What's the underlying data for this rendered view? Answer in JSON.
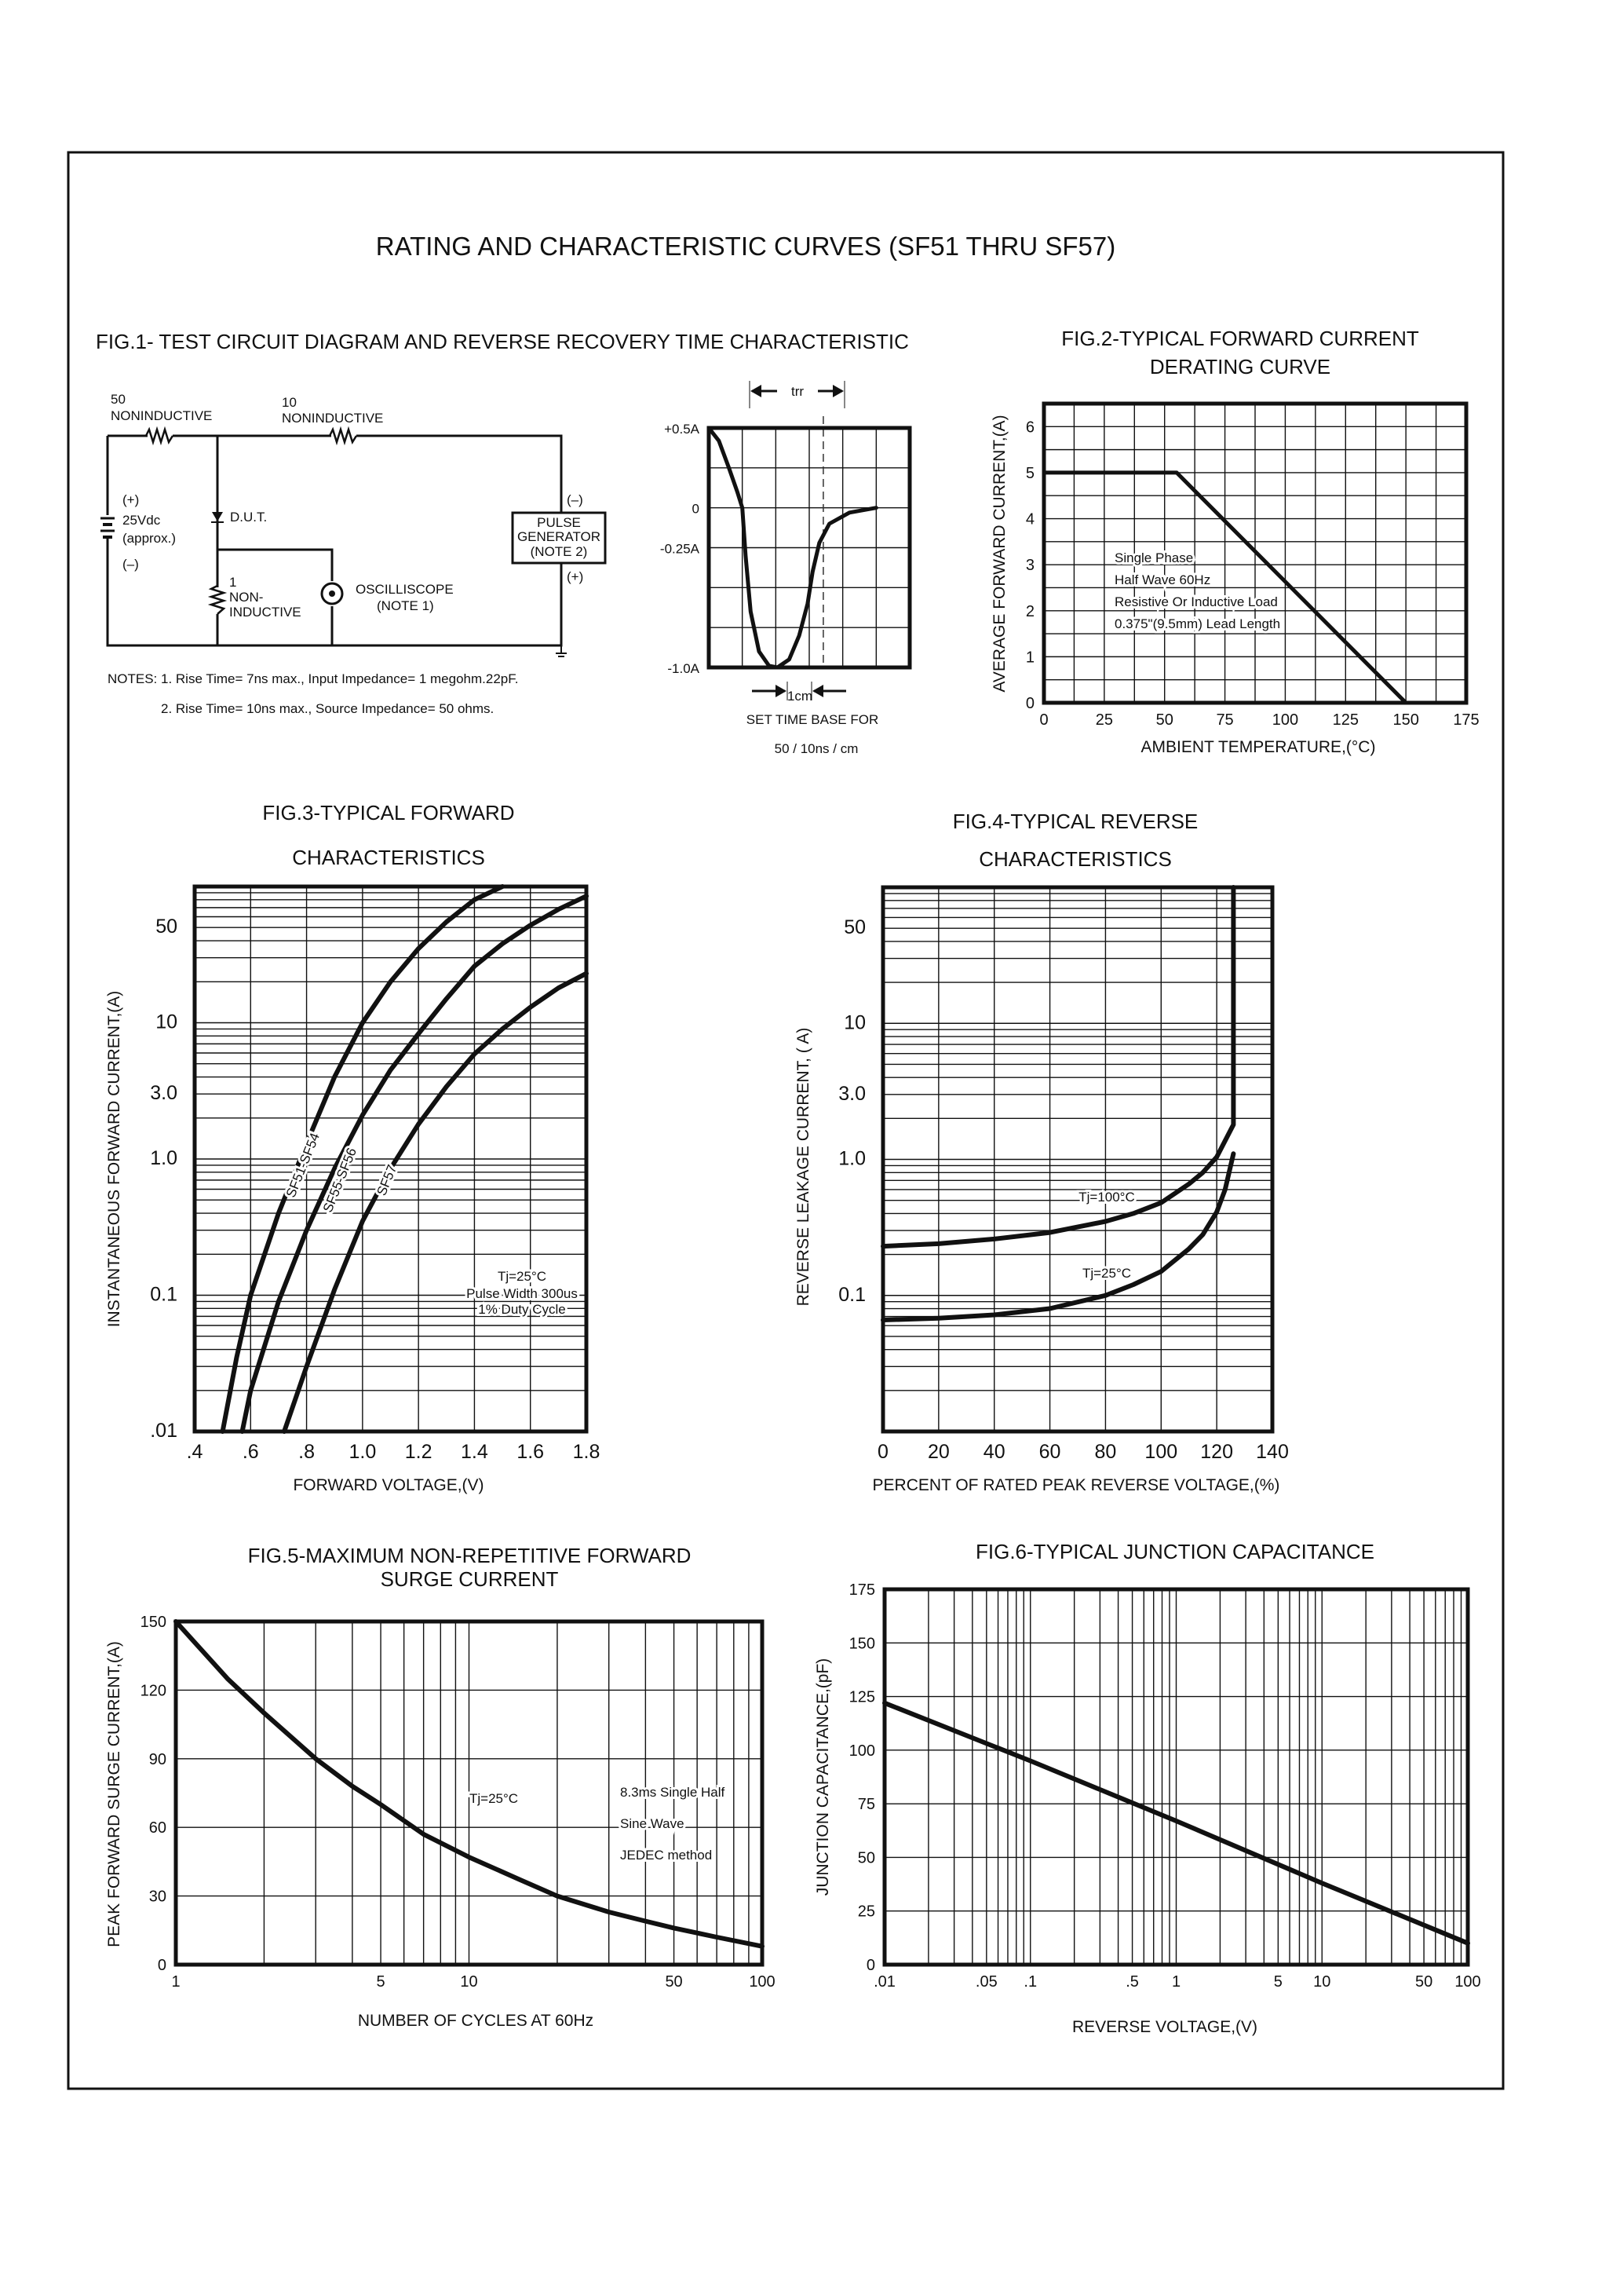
{
  "page": {
    "title": "RATING AND CHARACTERISTIC CURVES (SF51 THRU SF57)"
  },
  "fig1": {
    "title": "FIG.1- TEST CIRCUIT DIAGRAM AND REVERSE RECOVERY TIME CHARACTERISTIC",
    "r1_value": "50",
    "r1_type": "NONINDUCTIVE",
    "r2_value": "10",
    "r2_type": "NONINDUCTIVE",
    "battery_plus": "(+)",
    "battery_voltage": "25Vdc",
    "battery_approx": "(approx.)",
    "battery_minus": "(–)",
    "dut": "D.U.T.",
    "r3_value": "1",
    "r3_type_1": "NON-",
    "r3_type_2": "INDUCTIVE",
    "scope_1": "OSCILLISCOPE",
    "scope_2": "(NOTE 1)",
    "pulse_1": "PULSE",
    "pulse_2": "GENERATOR",
    "pulse_3": "(NOTE 2)",
    "pulse_minus": "(–)",
    "pulse_plus": "(+)",
    "note_1": "NOTES: 1. Rise Time= 7ns max., Input Impedance= 1 megohm.22pF.",
    "note_2": "2. Rise Time= 10ns max., Source Impedance= 50 ohms.",
    "trr": "trr",
    "one_cm": "1cm",
    "timebase_1": "SET TIME BASE FOR",
    "timebase_2": "50 / 10ns / cm"
  },
  "chart_data": [
    {
      "type": "line",
      "title": [],
      "xlabel": "",
      "ylabel": "",
      "xscale": "linear",
      "yscale": "linear",
      "xlim": [
        0,
        6
      ],
      "ylim": [
        -1.0,
        0.5
      ],
      "grid": true,
      "grid_step_x": 1,
      "grid_step_y": 0.25,
      "xticks": [],
      "yticks": [
        {
          "value": 0.5,
          "label": "+0.5A"
        },
        {
          "value": 0,
          "label": "0"
        },
        {
          "value": -0.25,
          "label": "-0.25A"
        },
        {
          "value": -1.0,
          "label": "-1.0A"
        }
      ],
      "markers": [
        {
          "type": "dashed-vertical",
          "x": 3.42
        }
      ],
      "series": [
        {
          "points": [
            [
              0,
              0.5
            ],
            [
              0.3,
              0.42
            ],
            [
              0.6,
              0.25
            ],
            [
              0.85,
              0.1
            ],
            [
              1.0,
              0
            ],
            [
              1.1,
              -0.3
            ],
            [
              1.25,
              -0.65
            ],
            [
              1.5,
              -0.9
            ],
            [
              1.8,
              -0.99
            ],
            [
              2.05,
              -1.0
            ],
            [
              2.4,
              -0.95
            ],
            [
              2.7,
              -0.8
            ],
            [
              2.95,
              -0.6
            ],
            [
              3.1,
              -0.4
            ],
            [
              3.3,
              -0.22
            ],
            [
              3.6,
              -0.1
            ],
            [
              4.2,
              -0.03
            ],
            [
              5.0,
              0
            ]
          ]
        }
      ],
      "annotations": []
    },
    {
      "type": "line",
      "title": [
        "FIG.2-TYPICAL FORWARD CURRENT",
        "DERATING CURVE"
      ],
      "xlabel": "AMBIENT TEMPERATURE,(°C)",
      "ylabel": "AVERAGE FORWARD CURRENT,(A)",
      "xscale": "linear",
      "yscale": "linear",
      "xlim": [
        0,
        175
      ],
      "ylim": [
        0,
        6.5
      ],
      "grid": true,
      "grid_step_x": 12.5,
      "grid_step_y": 0.5,
      "xticks": [
        {
          "value": 0,
          "label": "0"
        },
        {
          "value": 25,
          "label": "25"
        },
        {
          "value": 50,
          "label": "50"
        },
        {
          "value": 75,
          "label": "75"
        },
        {
          "value": 100,
          "label": "100"
        },
        {
          "value": 125,
          "label": "125"
        },
        {
          "value": 150,
          "label": "150"
        },
        {
          "value": 175,
          "label": "175"
        }
      ],
      "yticks": [
        {
          "value": 0,
          "label": "0"
        },
        {
          "value": 1,
          "label": "1"
        },
        {
          "value": 2,
          "label": "2"
        },
        {
          "value": 3,
          "label": "3"
        },
        {
          "value": 4,
          "label": "4"
        },
        {
          "value": 5,
          "label": "5"
        },
        {
          "value": 6,
          "label": "6"
        }
      ],
      "series": [
        {
          "points": [
            [
              0,
              5
            ],
            [
              55,
              5
            ],
            [
              150,
              0
            ]
          ]
        }
      ],
      "annotations": [
        "Single Phase",
        "Half Wave 60Hz",
        "Resistive Or Inductive Load",
        "0.375\"(9.5mm) Lead Length"
      ]
    },
    {
      "type": "line",
      "title": [
        "FIG.3-TYPICAL FORWARD",
        "CHARACTERISTICS"
      ],
      "xlabel": "FORWARD VOLTAGE,(V)",
      "ylabel": "INSTANTANEOUS FORWARD CURRENT,(A)",
      "xscale": "linear",
      "yscale": "log",
      "xlim": [
        0.4,
        1.8
      ],
      "ylim": [
        0.01,
        100
      ],
      "grid": true,
      "grid_step_x": 0.2,
      "xticks": [
        {
          "value": 0.4,
          "label": ".4"
        },
        {
          "value": 0.6,
          "label": ".6"
        },
        {
          "value": 0.8,
          "label": ".8"
        },
        {
          "value": 1.0,
          "label": "1.0"
        },
        {
          "value": 1.2,
          "label": "1.2"
        },
        {
          "value": 1.4,
          "label": "1.4"
        },
        {
          "value": 1.6,
          "label": "1.6"
        },
        {
          "value": 1.8,
          "label": "1.8"
        }
      ],
      "yticks": [
        {
          "value": 50,
          "label": "50"
        },
        {
          "value": 10,
          "label": "10"
        },
        {
          "value": 3,
          "label": "3.0"
        },
        {
          "value": 1,
          "label": "1.0"
        },
        {
          "value": 0.1,
          "label": "0.1"
        },
        {
          "value": 0.01,
          "label": ".01"
        }
      ],
      "series": [
        {
          "name": "SF51-SF54",
          "points": [
            [
              0.5,
              0.01
            ],
            [
              0.55,
              0.035
            ],
            [
              0.6,
              0.1
            ],
            [
              0.7,
              0.4
            ],
            [
              0.8,
              1.3
            ],
            [
              0.9,
              4
            ],
            [
              1.0,
              10
            ],
            [
              1.1,
              20
            ],
            [
              1.2,
              35
            ],
            [
              1.3,
              55
            ],
            [
              1.4,
              80
            ],
            [
              1.5,
              100
            ]
          ]
        },
        {
          "name": "SF55-SF56",
          "points": [
            [
              0.57,
              0.01
            ],
            [
              0.6,
              0.02
            ],
            [
              0.7,
              0.09
            ],
            [
              0.8,
              0.3
            ],
            [
              0.9,
              0.85
            ],
            [
              1.0,
              2.1
            ],
            [
              1.1,
              4.5
            ],
            [
              1.2,
              8.3
            ],
            [
              1.3,
              15
            ],
            [
              1.4,
              26
            ],
            [
              1.5,
              38
            ],
            [
              1.6,
              52
            ],
            [
              1.7,
              68
            ],
            [
              1.8,
              85
            ]
          ]
        },
        {
          "name": "SF57",
          "points": [
            [
              0.72,
              0.01
            ],
            [
              0.8,
              0.03
            ],
            [
              0.9,
              0.11
            ],
            [
              1.0,
              0.35
            ],
            [
              1.1,
              0.85
            ],
            [
              1.2,
              1.8
            ],
            [
              1.3,
              3.4
            ],
            [
              1.4,
              5.9
            ],
            [
              1.5,
              9
            ],
            [
              1.6,
              13
            ],
            [
              1.7,
              18
            ],
            [
              1.8,
              23
            ]
          ]
        }
      ],
      "annotations": [
        "Tj=25°C",
        "Pulse Width 300us",
        "1% Duty Cycle"
      ]
    },
    {
      "type": "line",
      "title": [
        "FIG.4-TYPICAL REVERSE",
        "CHARACTERISTICS"
      ],
      "xlabel": "PERCENT OF RATED PEAK REVERSE VOLTAGE,(%)",
      "ylabel": "REVERSE LEAKAGE CURRENT, (  A)",
      "xscale": "linear",
      "yscale": "log",
      "xlim": [
        0,
        140
      ],
      "ylim": [
        0.01,
        100
      ],
      "grid": true,
      "grid_step_x": 20,
      "xticks": [
        {
          "value": 0,
          "label": "0"
        },
        {
          "value": 20,
          "label": "20"
        },
        {
          "value": 40,
          "label": "40"
        },
        {
          "value": 60,
          "label": "60"
        },
        {
          "value": 80,
          "label": "80"
        },
        {
          "value": 100,
          "label": "100"
        },
        {
          "value": 120,
          "label": "120"
        },
        {
          "value": 140,
          "label": "140"
        }
      ],
      "yticks": [
        {
          "value": 50,
          "label": "50"
        },
        {
          "value": 10,
          "label": "10"
        },
        {
          "value": 3,
          "label": "3.0"
        },
        {
          "value": 1,
          "label": "1.0"
        },
        {
          "value": 0.1,
          "label": "0.1"
        }
      ],
      "series": [
        {
          "name": "Tj=100°C",
          "points": [
            [
              0,
              0.23
            ],
            [
              20,
              0.24
            ],
            [
              40,
              0.26
            ],
            [
              60,
              0.29
            ],
            [
              80,
              0.35
            ],
            [
              90,
              0.4
            ],
            [
              100,
              0.48
            ],
            [
              110,
              0.66
            ],
            [
              115,
              0.8
            ],
            [
              120,
              1.04
            ],
            [
              124,
              1.5
            ],
            [
              126,
              1.8
            ],
            [
              126,
              100
            ]
          ]
        },
        {
          "name": "Tj=25°C",
          "points": [
            [
              0,
              0.066
            ],
            [
              20,
              0.068
            ],
            [
              40,
              0.072
            ],
            [
              60,
              0.08
            ],
            [
              80,
              0.1
            ],
            [
              90,
              0.12
            ],
            [
              100,
              0.15
            ],
            [
              110,
              0.22
            ],
            [
              115,
              0.28
            ],
            [
              120,
              0.41
            ],
            [
              123,
              0.6
            ],
            [
              125,
              0.9
            ],
            [
              126,
              1.1
            ]
          ]
        }
      ],
      "annotations": []
    },
    {
      "type": "line",
      "title": [
        "FIG.5-MAXIMUM NON-REPETITIVE FORWARD",
        "SURGE CURRENT"
      ],
      "xlabel": "NUMBER OF CYCLES AT 60Hz",
      "ylabel": "PEAK FORWARD SURGE CURRENT,(A)",
      "xscale": "log",
      "yscale": "linear",
      "xlim": [
        1,
        100
      ],
      "ylim": [
        0,
        150
      ],
      "grid": true,
      "grid_step_y": 30,
      "xticks": [
        {
          "value": 1,
          "label": "1"
        },
        {
          "value": 5,
          "label": "5"
        },
        {
          "value": 10,
          "label": "10"
        },
        {
          "value": 50,
          "label": "50"
        },
        {
          "value": 100,
          "label": "100"
        }
      ],
      "yticks": [
        {
          "value": 0,
          "label": "0"
        },
        {
          "value": 30,
          "label": "30"
        },
        {
          "value": 60,
          "label": "60"
        },
        {
          "value": 90,
          "label": "90"
        },
        {
          "value": 120,
          "label": "120"
        },
        {
          "value": 150,
          "label": "150"
        }
      ],
      "series": [
        {
          "points": [
            [
              1,
              150
            ],
            [
              1.5,
              125
            ],
            [
              2,
              110
            ],
            [
              3,
              90
            ],
            [
              4,
              78
            ],
            [
              5,
              70
            ],
            [
              7,
              57
            ],
            [
              10,
              47
            ],
            [
              15,
              37
            ],
            [
              20,
              30
            ],
            [
              30,
              23
            ],
            [
              40,
              19
            ],
            [
              50,
              16
            ],
            [
              70,
              12
            ],
            [
              100,
              8
            ]
          ]
        }
      ],
      "annotations": [
        "Tj=25°C",
        "8.3ms Single Half",
        "Sine Wave",
        "JEDEC method"
      ]
    },
    {
      "type": "line",
      "title": [
        "FIG.6-TYPICAL JUNCTION CAPACITANCE"
      ],
      "xlabel": "REVERSE VOLTAGE,(V)",
      "ylabel": "JUNCTION CAPACITANCE,(pF)",
      "xscale": "log",
      "yscale": "linear",
      "xlim": [
        0.01,
        100
      ],
      "ylim": [
        0,
        175
      ],
      "grid": true,
      "grid_step_y": 25,
      "xticks": [
        {
          "value": 0.01,
          "label": ".01"
        },
        {
          "value": 0.05,
          "label": ".05"
        },
        {
          "value": 0.1,
          "label": ".1"
        },
        {
          "value": 0.5,
          "label": ".5"
        },
        {
          "value": 1,
          "label": "1"
        },
        {
          "value": 5,
          "label": "5"
        },
        {
          "value": 10,
          "label": "10"
        },
        {
          "value": 50,
          "label": "50"
        },
        {
          "value": 100,
          "label": "100"
        }
      ],
      "yticks": [
        {
          "value": 0,
          "label": "0"
        },
        {
          "value": 25,
          "label": "25"
        },
        {
          "value": 50,
          "label": "50"
        },
        {
          "value": 75,
          "label": "75"
        },
        {
          "value": 100,
          "label": "100"
        },
        {
          "value": 125,
          "label": "125"
        },
        {
          "value": 150,
          "label": "150"
        },
        {
          "value": 175,
          "label": "175"
        }
      ],
      "series": [
        {
          "points": [
            [
              0.01,
              122
            ],
            [
              0.1,
              95
            ],
            [
              1,
              67
            ],
            [
              10,
              38
            ],
            [
              100,
              10
            ]
          ]
        }
      ],
      "annotations": []
    }
  ]
}
